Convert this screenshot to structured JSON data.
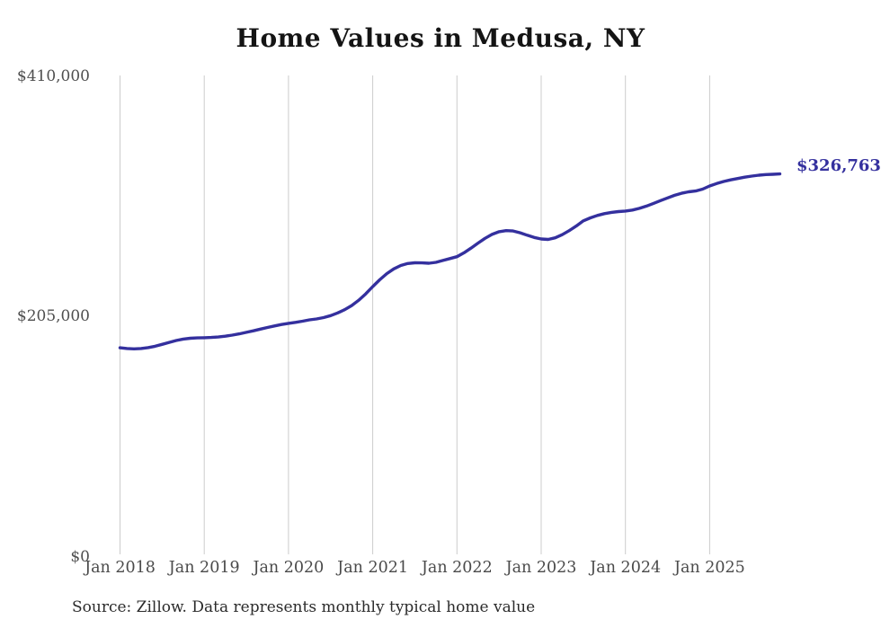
{
  "title": "Home Values in Medusa, NY",
  "end_label": "$326,763",
  "source_note": "Source: Zillow. Data represents monthly typical home value",
  "colors": {
    "line": "#34309e",
    "grid": "#cccccc",
    "title_text": "#141414",
    "tick_text": "#4a4a4a",
    "background": "#ffffff"
  },
  "chart_data": {
    "type": "line",
    "title": "Home Values in Medusa, NY",
    "xlabel": "",
    "ylabel": "",
    "ylim": [
      0,
      410000
    ],
    "grid": "vertical-only",
    "legend": "none",
    "frequency": "monthly",
    "start_month": "2018-01",
    "end_month": "2025-11",
    "x_tick_labels": [
      "Jan 2018",
      "Jan 2019",
      "Jan 2020",
      "Jan 2021",
      "Jan 2022",
      "Jan 2023",
      "Jan 2024",
      "Jan 2025"
    ],
    "y_tick_labels": [
      "$0",
      "$205,000",
      "$410,000"
    ],
    "series": [
      {
        "name": "Monthly typical home value",
        "values": [
          178500,
          177900,
          177600,
          177900,
          178600,
          179800,
          181400,
          183100,
          184700,
          185900,
          186600,
          186900,
          187100,
          187300,
          187700,
          188400,
          189300,
          190400,
          191700,
          193000,
          194400,
          195800,
          197100,
          198300,
          199300,
          200200,
          201200,
          202300,
          203100,
          204200,
          205900,
          208200,
          211000,
          214500,
          219000,
          224500,
          230700,
          236500,
          241700,
          245800,
          248700,
          250400,
          251000,
          250900,
          250600,
          251400,
          253000,
          254600,
          256200,
          259500,
          263500,
          267800,
          271800,
          275200,
          277500,
          278400,
          278100,
          276600,
          274500,
          272600,
          271300,
          270900,
          272300,
          275000,
          278400,
          282300,
          286800,
          289300,
          291400,
          292900,
          294000,
          294700,
          295100,
          296000,
          297400,
          299300,
          301600,
          304000,
          306300,
          308500,
          310300,
          311500,
          312200,
          313800,
          316500,
          318600,
          320300,
          321700,
          322900,
          324000,
          324900,
          325700,
          326200,
          326500,
          326763
        ]
      }
    ],
    "final_value": 326763
  }
}
